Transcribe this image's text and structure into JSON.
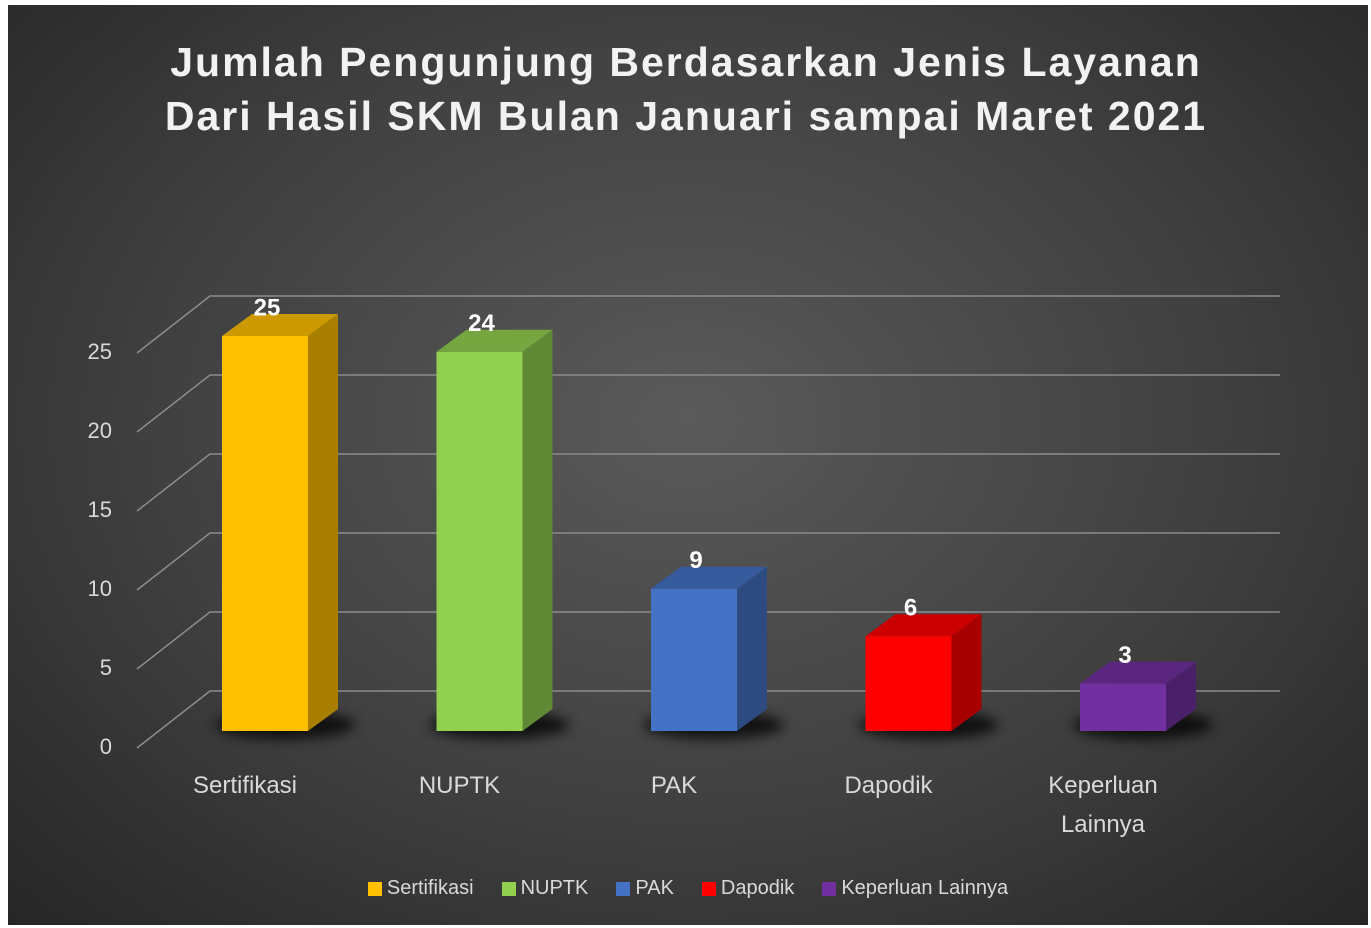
{
  "chart_data": {
    "type": "bar3d",
    "title": "Jumlah Pengunjung Berdasarkan Jenis Layanan Dari Hasil SKM Bulan Januari sampai Maret 2021",
    "categories": [
      "Sertifikasi",
      "NUPTK",
      "PAK",
      "Dapodik",
      "Keperluan Lainnya"
    ],
    "values": [
      25,
      24,
      9,
      6,
      3
    ],
    "colors": [
      "#ffc000",
      "#92d050",
      "#4472c4",
      "#ff0000",
      "#7030a0"
    ],
    "ylim": [
      0,
      25
    ],
    "yticks": [
      0,
      5,
      10,
      15,
      20,
      25
    ],
    "grid": true,
    "legend": "bottom"
  }
}
